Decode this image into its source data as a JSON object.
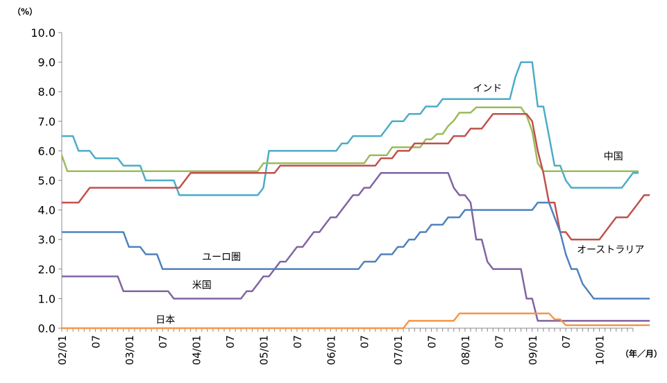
{
  "chart_data": {
    "type": "line",
    "y_unit_label": "（%）",
    "x_unit_label": "（年／月）",
    "ylim": [
      0,
      10
    ],
    "yticks": [
      "0.0",
      "1.0",
      "2.0",
      "3.0",
      "4.0",
      "5.0",
      "6.0",
      "7.0",
      "8.0",
      "9.0",
      "10.0"
    ],
    "xticks": [
      {
        "i": 0,
        "label": "02/01"
      },
      {
        "i": 6,
        "label": "07"
      },
      {
        "i": 12,
        "label": "03/01"
      },
      {
        "i": 18,
        "label": "07"
      },
      {
        "i": 24,
        "label": "04/01"
      },
      {
        "i": 30,
        "label": "07"
      },
      {
        "i": 36,
        "label": "05/01"
      },
      {
        "i": 42,
        "label": "07"
      },
      {
        "i": 48,
        "label": "06/01"
      },
      {
        "i": 54,
        "label": "07"
      },
      {
        "i": 60,
        "label": "07/01"
      },
      {
        "i": 66,
        "label": "07"
      },
      {
        "i": 72,
        "label": "08/01"
      },
      {
        "i": 78,
        "label": "07"
      },
      {
        "i": 84,
        "label": "09/01"
      },
      {
        "i": 90,
        "label": "07"
      },
      {
        "i": 96,
        "label": "10/01"
      }
    ],
    "months": [
      "2002-01",
      "2002-02",
      "2002-03",
      "2002-04",
      "2002-05",
      "2002-06",
      "2002-07",
      "2002-08",
      "2002-09",
      "2002-10",
      "2002-11",
      "2002-12",
      "2003-01",
      "2003-02",
      "2003-03",
      "2003-04",
      "2003-05",
      "2003-06",
      "2003-07",
      "2003-08",
      "2003-09",
      "2003-10",
      "2003-11",
      "2003-12",
      "2004-01",
      "2004-02",
      "2004-03",
      "2004-04",
      "2004-05",
      "2004-06",
      "2004-07",
      "2004-08",
      "2004-09",
      "2004-10",
      "2004-11",
      "2004-12",
      "2005-01",
      "2005-02",
      "2005-03",
      "2005-04",
      "2005-05",
      "2005-06",
      "2005-07",
      "2005-08",
      "2005-09",
      "2005-10",
      "2005-11",
      "2005-12",
      "2006-01",
      "2006-02",
      "2006-03",
      "2006-04",
      "2006-05",
      "2006-06",
      "2006-07",
      "2006-08",
      "2006-09",
      "2006-10",
      "2006-11",
      "2006-12",
      "2007-01",
      "2007-02",
      "2007-03",
      "2007-04",
      "2007-05",
      "2007-06",
      "2007-07",
      "2007-08",
      "2007-09",
      "2007-10",
      "2007-11",
      "2007-12",
      "2008-01",
      "2008-02",
      "2008-03",
      "2008-04",
      "2008-05",
      "2008-06",
      "2008-07",
      "2008-08",
      "2008-09",
      "2008-10",
      "2008-11",
      "2008-12",
      "2009-01",
      "2009-02",
      "2009-03",
      "2009-04",
      "2009-05",
      "2009-06",
      "2009-07",
      "2009-08",
      "2009-09",
      "2009-10",
      "2009-11",
      "2009-12",
      "2010-01",
      "2010-02",
      "2010-03",
      "2010-04",
      "2010-05",
      "2010-06"
    ],
    "series": [
      {
        "name": "インド",
        "color": "#4BACC6",
        "points": [
          [
            0,
            6.5
          ],
          [
            2,
            6.5
          ],
          [
            3,
            6.0
          ],
          [
            5,
            6.0
          ],
          [
            6,
            5.75
          ],
          [
            10,
            5.75
          ],
          [
            11,
            5.5
          ],
          [
            14,
            5.5
          ],
          [
            15,
            5.0
          ],
          [
            20,
            5.0
          ],
          [
            21,
            4.5
          ],
          [
            35,
            4.5
          ],
          [
            36,
            4.75
          ],
          [
            37,
            6.0
          ],
          [
            49,
            6.0
          ],
          [
            50,
            6.25
          ],
          [
            51,
            6.25
          ],
          [
            52,
            6.5
          ],
          [
            57,
            6.5
          ],
          [
            58,
            6.75
          ],
          [
            59,
            7.0
          ],
          [
            61,
            7.0
          ],
          [
            62,
            7.25
          ],
          [
            64,
            7.25
          ],
          [
            65,
            7.5
          ],
          [
            67,
            7.5
          ],
          [
            68,
            7.75
          ],
          [
            80,
            7.75
          ],
          [
            81,
            8.5
          ],
          [
            82,
            9.0
          ],
          [
            84,
            9.0
          ],
          [
            85,
            7.5
          ],
          [
            86,
            7.5
          ],
          [
            87,
            6.5
          ],
          [
            88,
            5.5
          ],
          [
            89,
            5.5
          ],
          [
            90,
            5.0
          ],
          [
            91,
            4.75
          ],
          [
            100,
            4.75
          ],
          [
            102,
            5.25
          ],
          [
            103,
            5.25
          ]
        ]
      },
      {
        "name": "中国",
        "color": "#9BBB59",
        "points": [
          [
            0,
            5.85
          ],
          [
            1,
            5.31
          ],
          [
            35,
            5.31
          ],
          [
            36,
            5.58
          ],
          [
            54,
            5.58
          ],
          [
            55,
            5.85
          ],
          [
            58,
            5.85
          ],
          [
            59,
            6.12
          ],
          [
            64,
            6.12
          ],
          [
            65,
            6.39
          ],
          [
            66,
            6.39
          ],
          [
            67,
            6.57
          ],
          [
            68,
            6.57
          ],
          [
            69,
            6.84
          ],
          [
            70,
            7.02
          ],
          [
            71,
            7.29
          ],
          [
            73,
            7.29
          ],
          [
            74,
            7.47
          ],
          [
            82,
            7.47
          ],
          [
            83,
            7.2
          ],
          [
            84,
            6.66
          ],
          [
            85,
            5.58
          ],
          [
            86,
            5.31
          ],
          [
            103,
            5.31
          ]
        ]
      },
      {
        "name": "オーストラリア",
        "color": "#C0504D",
        "points": [
          [
            0,
            4.25
          ],
          [
            3,
            4.25
          ],
          [
            4,
            4.5
          ],
          [
            5,
            4.75
          ],
          [
            21,
            4.75
          ],
          [
            22,
            5.0
          ],
          [
            23,
            5.25
          ],
          [
            38,
            5.25
          ],
          [
            39,
            5.5
          ],
          [
            56,
            5.5
          ],
          [
            57,
            5.75
          ],
          [
            59,
            5.75
          ],
          [
            60,
            6.0
          ],
          [
            62,
            6.0
          ],
          [
            63,
            6.25
          ],
          [
            69,
            6.25
          ],
          [
            70,
            6.5
          ],
          [
            72,
            6.5
          ],
          [
            73,
            6.75
          ],
          [
            75,
            6.75
          ],
          [
            76,
            7.0
          ],
          [
            77,
            7.25
          ],
          [
            83,
            7.25
          ],
          [
            84,
            7.0
          ],
          [
            85,
            6.0
          ],
          [
            86,
            5.25
          ],
          [
            87,
            4.25
          ],
          [
            88,
            4.25
          ],
          [
            89,
            3.25
          ],
          [
            90,
            3.25
          ],
          [
            91,
            3.0
          ],
          [
            96,
            3.0
          ],
          [
            97,
            3.25
          ],
          [
            98,
            3.5
          ],
          [
            99,
            3.75
          ],
          [
            101,
            3.75
          ],
          [
            102,
            4.0
          ],
          [
            103,
            4.25
          ],
          [
            104,
            4.5
          ],
          [
            105,
            4.5
          ]
        ]
      },
      {
        "name": "米国",
        "color": "#8064A2",
        "points": [
          [
            0,
            1.75
          ],
          [
            10,
            1.75
          ],
          [
            11,
            1.25
          ],
          [
            19,
            1.25
          ],
          [
            20,
            1.0
          ],
          [
            32,
            1.0
          ],
          [
            33,
            1.25
          ],
          [
            34,
            1.25
          ],
          [
            35,
            1.5
          ],
          [
            36,
            1.75
          ],
          [
            37,
            1.75
          ],
          [
            38,
            2.0
          ],
          [
            39,
            2.25
          ],
          [
            40,
            2.25
          ],
          [
            41,
            2.5
          ],
          [
            42,
            2.75
          ],
          [
            43,
            2.75
          ],
          [
            44,
            3.0
          ],
          [
            45,
            3.25
          ],
          [
            46,
            3.25
          ],
          [
            47,
            3.5
          ],
          [
            48,
            3.75
          ],
          [
            49,
            3.75
          ],
          [
            50,
            4.0
          ],
          [
            51,
            4.25
          ],
          [
            52,
            4.5
          ],
          [
            53,
            4.5
          ],
          [
            54,
            4.75
          ],
          [
            55,
            4.75
          ],
          [
            56,
            5.0
          ],
          [
            57,
            5.25
          ],
          [
            69,
            5.25
          ],
          [
            70,
            4.75
          ],
          [
            71,
            4.5
          ],
          [
            72,
            4.5
          ],
          [
            73,
            4.25
          ],
          [
            74,
            3.0
          ],
          [
            75,
            3.0
          ],
          [
            76,
            2.25
          ],
          [
            77,
            2.0
          ],
          [
            82,
            2.0
          ],
          [
            83,
            1.0
          ],
          [
            84,
            1.0
          ],
          [
            85,
            0.25
          ],
          [
            105,
            0.25
          ]
        ]
      },
      {
        "name": "ユーロ圏",
        "color": "#4F81BD",
        "points": [
          [
            0,
            3.25
          ],
          [
            11,
            3.25
          ],
          [
            12,
            2.75
          ],
          [
            14,
            2.75
          ],
          [
            15,
            2.5
          ],
          [
            17,
            2.5
          ],
          [
            18,
            2.0
          ],
          [
            53,
            2.0
          ],
          [
            54,
            2.25
          ],
          [
            56,
            2.25
          ],
          [
            57,
            2.5
          ],
          [
            59,
            2.5
          ],
          [
            60,
            2.75
          ],
          [
            61,
            2.75
          ],
          [
            62,
            3.0
          ],
          [
            63,
            3.0
          ],
          [
            64,
            3.25
          ],
          [
            65,
            3.25
          ],
          [
            66,
            3.5
          ],
          [
            68,
            3.5
          ],
          [
            69,
            3.75
          ],
          [
            71,
            3.75
          ],
          [
            72,
            4.0
          ],
          [
            84,
            4.0
          ],
          [
            85,
            4.25
          ],
          [
            87,
            4.25
          ],
          [
            88,
            3.75
          ],
          [
            89,
            3.25
          ],
          [
            90,
            2.5
          ],
          [
            91,
            2.0
          ],
          [
            92,
            2.0
          ],
          [
            93,
            1.5
          ],
          [
            95,
            1.0
          ],
          [
            105,
            1.0
          ]
        ]
      },
      {
        "name": "日本",
        "color": "#F79646",
        "points": [
          [
            0,
            0.0
          ],
          [
            61,
            0.0
          ],
          [
            62,
            0.25
          ],
          [
            70,
            0.25
          ],
          [
            71,
            0.5
          ],
          [
            87,
            0.5
          ],
          [
            88,
            0.3
          ],
          [
            89,
            0.3
          ],
          [
            90,
            0.1
          ],
          [
            105,
            0.1
          ]
        ]
      }
    ],
    "labels": [
      {
        "series": "インド",
        "text": "インド",
        "i": 76,
        "v": 8.0
      },
      {
        "series": "中国",
        "text": "中国",
        "i": 98.5,
        "v": 5.7
      },
      {
        "series": "オーストラリア",
        "text": "オーストラリア",
        "i": 98,
        "v": 2.55
      },
      {
        "series": "米国",
        "text": "米国",
        "i": 25,
        "v": 1.35
      },
      {
        "series": "ユーロ圏",
        "text": "ユーロ圏",
        "i": 28.5,
        "v": 2.3
      },
      {
        "series": "日本",
        "text": "日本",
        "i": 18.5,
        "v": 0.18
      }
    ]
  }
}
